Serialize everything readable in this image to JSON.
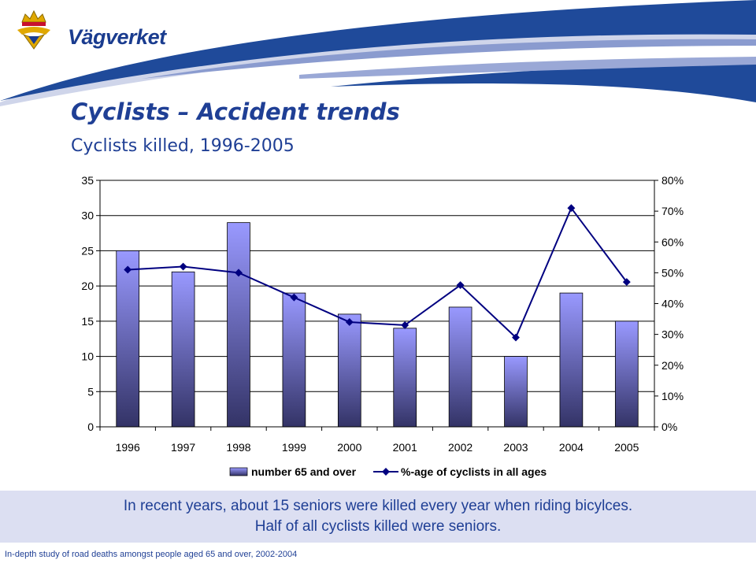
{
  "logo": {
    "brand_text": "Vägverket"
  },
  "slide": {
    "title": "Cyclists – Accident trends",
    "subtitle": "Cyclists killed, 1996-2005"
  },
  "caption": {
    "line1": "In recent years, about 15 seniors were killed every year when riding bicylces.",
    "line2": "Half of all cyclists killed were seniors."
  },
  "footer": "In-depth study of road deaths amongst people aged 65 and over, 2002-2004",
  "colors": {
    "brand_blue": "#1f3f95",
    "bar_top": "#9999ff",
    "bar_bottom": "#333366",
    "line": "#000080",
    "caption_bg": "#dcdff2"
  },
  "chart_data": {
    "type": "bar",
    "categories": [
      "1996",
      "1997",
      "1998",
      "1999",
      "2000",
      "2001",
      "2002",
      "2003",
      "2004",
      "2005"
    ],
    "series": [
      {
        "name": "number 65 and over",
        "type": "bar",
        "axis": "left",
        "values": [
          25,
          22,
          29,
          19,
          16,
          14,
          17,
          10,
          19,
          15
        ]
      },
      {
        "name": "%-age of cyclists in all ages",
        "type": "line",
        "axis": "right",
        "values": [
          51,
          52,
          50,
          42,
          34,
          33,
          46,
          29,
          71,
          47
        ]
      }
    ],
    "y_left": {
      "min": 0,
      "max": 35,
      "ticks": [
        "0",
        "5",
        "10",
        "15",
        "20",
        "25",
        "30",
        "35"
      ]
    },
    "y_right": {
      "min": 0,
      "max": 80,
      "ticks": [
        "0%",
        "10%",
        "20%",
        "30%",
        "40%",
        "50%",
        "60%",
        "70%",
        "80%"
      ]
    },
    "grid": "horizontal",
    "legend": "bottom"
  }
}
